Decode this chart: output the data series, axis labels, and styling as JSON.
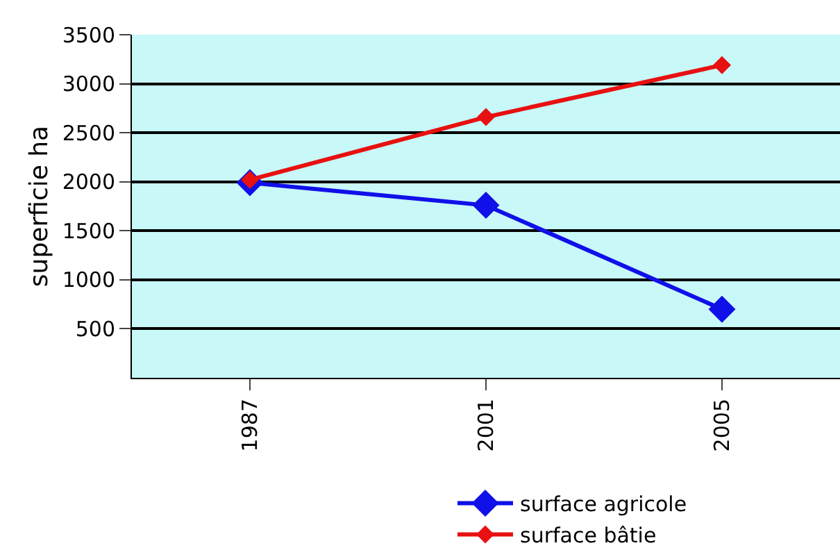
{
  "chart_data": {
    "type": "line",
    "ylabel": "superficie ha",
    "categories": [
      "1987",
      "2001",
      "2005"
    ],
    "series": [
      {
        "name": "surface agricole",
        "color": "#1010e8",
        "values": [
          1990,
          1760,
          700
        ]
      },
      {
        "name": "surface bâtie",
        "color": "#e81010",
        "values": [
          2020,
          2660,
          3190
        ]
      }
    ],
    "ylim": [
      0,
      3500
    ],
    "yticks": [
      500,
      1000,
      1500,
      2000,
      2500,
      3000,
      3500
    ],
    "grid": "y",
    "legend": "bottom right",
    "marker": "diamond",
    "line_style": "solid"
  }
}
